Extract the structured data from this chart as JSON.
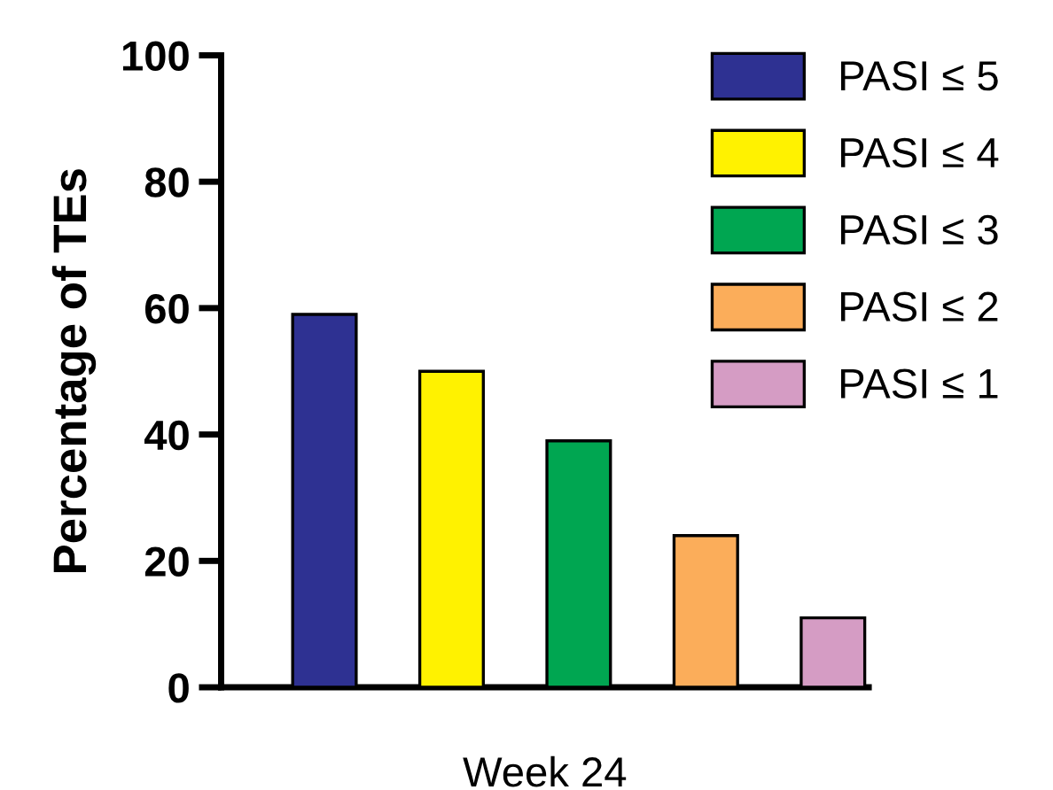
{
  "chart_data": {
    "type": "bar",
    "categories": [
      null
    ],
    "xlabel": "Week 24",
    "ylabel": "Percentage of TEs",
    "series": [
      {
        "name": "PASI ≤ 5",
        "color": "#2e3192",
        "values": [
          59
        ]
      },
      {
        "name": "PASI ≤ 4",
        "color": "#fff200",
        "values": [
          50
        ]
      },
      {
        "name": "PASI ≤ 3",
        "color": "#00a651",
        "values": [
          39
        ]
      },
      {
        "name": "PASI ≤ 2",
        "color": "#fbad5a",
        "values": [
          24
        ]
      },
      {
        "name": "PASI ≤ 1",
        "color": "#d59cc4",
        "values": [
          11
        ]
      }
    ],
    "ylim": [
      0,
      100
    ],
    "yticks": [
      0,
      20,
      40,
      60,
      80,
      100
    ],
    "grid": false,
    "legend": "top right"
  }
}
